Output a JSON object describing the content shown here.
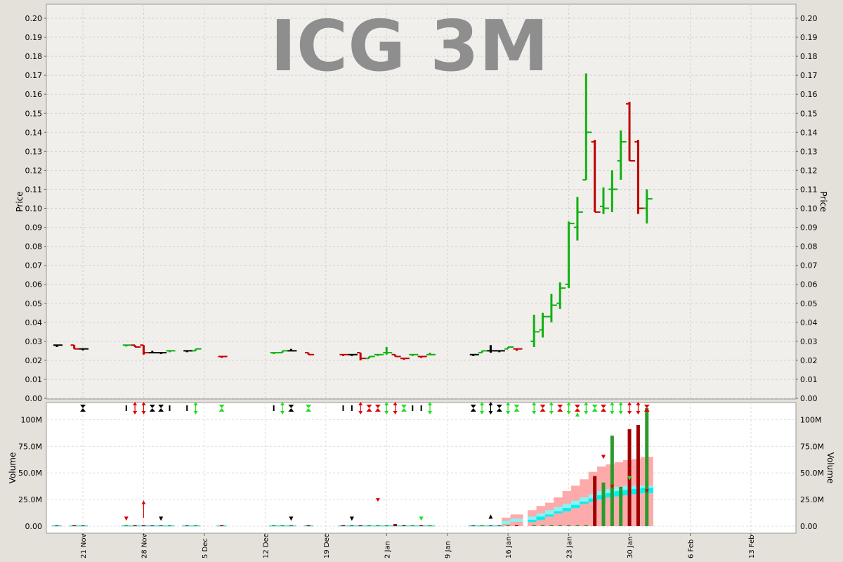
{
  "chart_data": [
    {
      "type": "ohlc",
      "title": "ICG 3M",
      "ylabel": "Price",
      "ylim": [
        0,
        0.205
      ],
      "yticks": [
        "0.00",
        "0.01",
        "0.02",
        "0.03",
        "0.04",
        "0.05",
        "0.06",
        "0.07",
        "0.08",
        "0.09",
        "0.10",
        "0.11",
        "0.12",
        "0.13",
        "0.14",
        "0.15",
        "0.16",
        "0.17",
        "0.18",
        "0.19",
        "0.20"
      ],
      "grid": true,
      "colors": {
        "up": "#10b010",
        "down": "#c00000",
        "flat": "#000000"
      },
      "bars": [
        {
          "date": "2012-11-18",
          "open": 0.028,
          "high": 0.028,
          "low": 0.027,
          "close": 0.028,
          "dir": "flat"
        },
        {
          "date": "2012-11-20",
          "open": 0.028,
          "high": 0.028,
          "low": 0.026,
          "close": 0.026,
          "dir": "down"
        },
        {
          "date": "2012-11-21",
          "open": 0.026,
          "high": 0.026,
          "low": 0.026,
          "close": 0.026,
          "dir": "flat"
        },
        {
          "date": "2012-11-26",
          "open": 0.028,
          "high": 0.028,
          "low": 0.028,
          "close": 0.028,
          "dir": "up"
        },
        {
          "date": "2012-11-27",
          "open": 0.028,
          "high": 0.028,
          "low": 0.027,
          "close": 0.027,
          "dir": "down"
        },
        {
          "date": "2012-11-28",
          "open": 0.028,
          "high": 0.028,
          "low": 0.023,
          "close": 0.024,
          "dir": "down"
        },
        {
          "date": "2012-11-29",
          "open": 0.024,
          "high": 0.025,
          "low": 0.024,
          "close": 0.024,
          "dir": "flat"
        },
        {
          "date": "2012-11-30",
          "open": 0.024,
          "high": 0.024,
          "low": 0.024,
          "close": 0.024,
          "dir": "flat"
        },
        {
          "date": "2012-12-01",
          "open": 0.025,
          "high": 0.025,
          "low": 0.025,
          "close": 0.025,
          "dir": "up"
        },
        {
          "date": "2012-12-03",
          "open": 0.025,
          "high": 0.025,
          "low": 0.025,
          "close": 0.025,
          "dir": "flat"
        },
        {
          "date": "2012-12-04",
          "open": 0.025,
          "high": 0.026,
          "low": 0.025,
          "close": 0.026,
          "dir": "up"
        },
        {
          "date": "2012-12-07",
          "open": 0.022,
          "high": 0.022,
          "low": 0.022,
          "close": 0.022,
          "dir": "down"
        },
        {
          "date": "2012-12-13",
          "open": 0.024,
          "high": 0.024,
          "low": 0.024,
          "close": 0.024,
          "dir": "up"
        },
        {
          "date": "2012-12-14",
          "open": 0.024,
          "high": 0.025,
          "low": 0.024,
          "close": 0.025,
          "dir": "up"
        },
        {
          "date": "2012-12-15",
          "open": 0.025,
          "high": 0.026,
          "low": 0.025,
          "close": 0.025,
          "dir": "flat"
        },
        {
          "date": "2012-12-17",
          "open": 0.024,
          "high": 0.024,
          "low": 0.023,
          "close": 0.023,
          "dir": "down"
        },
        {
          "date": "2012-12-21",
          "open": 0.023,
          "high": 0.023,
          "low": 0.023,
          "close": 0.023,
          "dir": "down"
        },
        {
          "date": "2012-12-22",
          "open": 0.023,
          "high": 0.023,
          "low": 0.023,
          "close": 0.023,
          "dir": "flat"
        },
        {
          "date": "2012-12-23",
          "open": 0.024,
          "high": 0.024,
          "low": 0.02,
          "close": 0.021,
          "dir": "down"
        },
        {
          "date": "2012-12-24",
          "open": 0.021,
          "high": 0.022,
          "low": 0.021,
          "close": 0.022,
          "dir": "up"
        },
        {
          "date": "2012-12-25",
          "open": 0.023,
          "high": 0.023,
          "low": 0.023,
          "close": 0.023,
          "dir": "up"
        },
        {
          "date": "2012-12-26",
          "open": 0.024,
          "high": 0.027,
          "low": 0.023,
          "close": 0.024,
          "dir": "up"
        },
        {
          "date": "2012-12-27",
          "open": 0.023,
          "high": 0.023,
          "low": 0.022,
          "close": 0.022,
          "dir": "down"
        },
        {
          "date": "2012-12-28",
          "open": 0.021,
          "high": 0.021,
          "low": 0.021,
          "close": 0.021,
          "dir": "down"
        },
        {
          "date": "2012-12-29",
          "open": 0.023,
          "high": 0.023,
          "low": 0.023,
          "close": 0.023,
          "dir": "up"
        },
        {
          "date": "2012-12-30",
          "open": 0.022,
          "high": 0.022,
          "low": 0.022,
          "close": 0.022,
          "dir": "down"
        },
        {
          "date": "2012-12-31",
          "open": 0.023,
          "high": 0.024,
          "low": 0.023,
          "close": 0.023,
          "dir": "up"
        },
        {
          "date": "2013-01-05",
          "open": 0.023,
          "high": 0.023,
          "low": 0.023,
          "close": 0.023,
          "dir": "flat"
        },
        {
          "date": "2013-01-06",
          "open": 0.024,
          "high": 0.025,
          "low": 0.024,
          "close": 0.025,
          "dir": "up"
        },
        {
          "date": "2013-01-07",
          "open": 0.025,
          "high": 0.028,
          "low": 0.024,
          "close": 0.025,
          "dir": "flat"
        },
        {
          "date": "2013-01-08",
          "open": 0.025,
          "high": 0.025,
          "low": 0.025,
          "close": 0.025,
          "dir": "flat"
        },
        {
          "date": "2013-01-09",
          "open": 0.026,
          "high": 0.027,
          "low": 0.026,
          "close": 0.027,
          "dir": "up"
        },
        {
          "date": "2013-01-10",
          "open": 0.026,
          "high": 0.026,
          "low": 0.025,
          "close": 0.026,
          "dir": "down"
        },
        {
          "date": "2013-01-12",
          "open": 0.03,
          "high": 0.044,
          "low": 0.027,
          "close": 0.035,
          "dir": "up"
        },
        {
          "date": "2013-01-13",
          "open": 0.036,
          "high": 0.045,
          "low": 0.032,
          "close": 0.043,
          "dir": "up"
        },
        {
          "date": "2013-01-14",
          "open": 0.043,
          "high": 0.055,
          "low": 0.04,
          "close": 0.049,
          "dir": "up"
        },
        {
          "date": "2013-01-15",
          "open": 0.05,
          "high": 0.061,
          "low": 0.047,
          "close": 0.058,
          "dir": "up"
        },
        {
          "date": "2013-01-16",
          "open": 0.06,
          "high": 0.093,
          "low": 0.058,
          "close": 0.092,
          "dir": "up"
        },
        {
          "date": "2013-01-17",
          "open": 0.09,
          "high": 0.106,
          "low": 0.083,
          "close": 0.098,
          "dir": "up"
        },
        {
          "date": "2013-01-18",
          "open": 0.115,
          "high": 0.171,
          "low": 0.115,
          "close": 0.14,
          "dir": "up"
        },
        {
          "date": "2013-01-19",
          "open": 0.135,
          "high": 0.136,
          "low": 0.098,
          "close": 0.098,
          "dir": "down"
        },
        {
          "date": "2013-01-20",
          "open": 0.101,
          "high": 0.111,
          "low": 0.097,
          "close": 0.1,
          "dir": "up"
        },
        {
          "date": "2013-01-21",
          "open": 0.11,
          "high": 0.12,
          "low": 0.098,
          "close": 0.11,
          "dir": "up"
        },
        {
          "date": "2013-01-22",
          "open": 0.125,
          "high": 0.141,
          "low": 0.115,
          "close": 0.135,
          "dir": "up"
        },
        {
          "date": "2013-01-23",
          "open": 0.155,
          "high": 0.156,
          "low": 0.125,
          "close": 0.125,
          "dir": "down"
        },
        {
          "date": "2013-01-24",
          "open": 0.135,
          "high": 0.136,
          "low": 0.097,
          "close": 0.1,
          "dir": "down"
        },
        {
          "date": "2013-01-25",
          "open": 0.1,
          "high": 0.11,
          "low": 0.092,
          "close": 0.105,
          "dir": "up"
        }
      ]
    },
    {
      "type": "bar",
      "ylabel": "Volume",
      "ylim": [
        0,
        117
      ],
      "yticks": [
        "0.00",
        "25.0M",
        "50.0M",
        "75.0M",
        "100M"
      ],
      "ytick_values": [
        0,
        25,
        50,
        75,
        100
      ],
      "grid": true,
      "xticks": [
        "21 Nov",
        "28 Nov",
        "5 Dec",
        "12 Dec",
        "19 Dec",
        "2 Jan",
        "9 Jan",
        "16 Jan",
        "23 Jan",
        "30 Jan",
        "6 Feb",
        "13 Feb"
      ],
      "volumes_M": [
        0.3,
        0.8,
        0.3,
        0.3,
        0.3,
        0.8,
        0.8,
        0.3,
        0.3,
        0.3,
        0.3,
        0.3,
        0.3,
        0.3,
        0.5,
        0.8,
        0.3,
        0.3,
        0.3,
        1.0,
        0.3,
        0.3,
        2.0,
        0.3,
        0.3,
        0.3,
        0.3,
        0.3,
        0.3,
        0.3,
        0.3,
        0.3,
        0.3,
        0.8,
        0.3,
        1.0,
        0.3,
        0.3,
        0.3,
        0.3,
        47,
        41,
        85,
        37,
        91,
        95,
        111,
        70,
        57,
        29,
        39,
        37,
        36,
        25
      ],
      "signals": [
        {
          "d": "2012-11-21",
          "s": "hourglass",
          "c": "black"
        },
        {
          "d": "2012-11-26",
          "s": "bar",
          "c": "black"
        },
        {
          "d": "2012-11-27",
          "s": "updown",
          "c": "red"
        },
        {
          "d": "2012-11-28",
          "s": "updown",
          "c": "red"
        },
        {
          "d": "2012-11-29",
          "s": "hourglass",
          "c": "black"
        },
        {
          "d": "2012-11-30",
          "s": "hourglass",
          "c": "black"
        },
        {
          "d": "2012-12-01",
          "s": "bar",
          "c": "black"
        },
        {
          "d": "2012-12-03",
          "s": "bar",
          "c": "black"
        },
        {
          "d": "2012-12-04",
          "s": "updown",
          "c": "lime"
        },
        {
          "d": "2012-12-07",
          "s": "hourglass",
          "c": "lime"
        },
        {
          "d": "2012-12-13",
          "s": "bar",
          "c": "black"
        },
        {
          "d": "2012-12-14",
          "s": "updown",
          "c": "lime"
        },
        {
          "d": "2012-12-15",
          "s": "hourglass",
          "c": "black"
        },
        {
          "d": "2012-12-17",
          "s": "hourglass",
          "c": "lime"
        },
        {
          "d": "2012-12-21",
          "s": "bar",
          "c": "black"
        },
        {
          "d": "2012-12-22",
          "s": "bar",
          "c": "black"
        },
        {
          "d": "2012-12-23",
          "s": "updown",
          "c": "red"
        },
        {
          "d": "2012-12-24",
          "s": "hourglass",
          "c": "red"
        },
        {
          "d": "2012-12-25",
          "s": "hourglass",
          "c": "red"
        },
        {
          "d": "2012-12-26",
          "s": "updown",
          "c": "lime"
        },
        {
          "d": "2012-12-27",
          "s": "updown",
          "c": "red"
        },
        {
          "d": "2012-12-28",
          "s": "hourglass",
          "c": "lime"
        },
        {
          "d": "2012-12-29",
          "s": "bar",
          "c": "black"
        },
        {
          "d": "2012-12-30",
          "s": "bar",
          "c": "black"
        },
        {
          "d": "2012-12-31",
          "s": "updown",
          "c": "lime"
        },
        {
          "d": "2013-01-05",
          "s": "hourglass",
          "c": "black"
        },
        {
          "d": "2013-01-06",
          "s": "updown",
          "c": "lime"
        },
        {
          "d": "2013-01-07",
          "s": "updown",
          "c": "black"
        },
        {
          "d": "2013-01-08",
          "s": "hourglass",
          "c": "black"
        },
        {
          "d": "2013-01-09",
          "s": "updown",
          "c": "lime"
        },
        {
          "d": "2013-01-10",
          "s": "hourglass",
          "c": "lime"
        },
        {
          "d": "2013-01-12",
          "s": "updown",
          "c": "lime"
        },
        {
          "d": "2013-01-13",
          "s": "hourglass",
          "c": "red"
        },
        {
          "d": "2013-01-14",
          "s": "updown",
          "c": "lime"
        },
        {
          "d": "2013-01-15",
          "s": "hourglass",
          "c": "red"
        },
        {
          "d": "2013-01-16",
          "s": "updown",
          "c": "lime"
        },
        {
          "d": "2013-01-17",
          "s": "hourglass",
          "c": "red"
        },
        {
          "d": "2013-01-18",
          "s": "updown",
          "c": "lime"
        },
        {
          "d": "2013-01-19",
          "s": "hourglass",
          "c": "lime"
        },
        {
          "d": "2013-01-20",
          "s": "hourglass",
          "c": "red"
        },
        {
          "d": "2013-01-21",
          "s": "updown",
          "c": "lime"
        },
        {
          "d": "2013-01-22",
          "s": "updown",
          "c": "lime"
        },
        {
          "d": "2013-01-23",
          "s": "updown",
          "c": "red"
        },
        {
          "d": "2013-01-24",
          "s": "updown",
          "c": "red"
        },
        {
          "d": "2013-01-25",
          "s": "hourglass",
          "c": "red"
        }
      ],
      "small_markers": [
        {
          "d": "2012-11-26",
          "s": "down",
          "c": "red",
          "v": 7
        },
        {
          "d": "2012-11-28",
          "s": "uparrow",
          "c": "red",
          "v": 24
        },
        {
          "d": "2012-11-30",
          "s": "down",
          "c": "black",
          "v": 7
        },
        {
          "d": "2012-12-15",
          "s": "down",
          "c": "black",
          "v": 7
        },
        {
          "d": "2012-12-22",
          "s": "down",
          "c": "black",
          "v": 7
        },
        {
          "d": "2012-12-25",
          "s": "downarrow",
          "c": "red",
          "v": 23
        },
        {
          "d": "2012-12-30",
          "s": "down",
          "c": "lime",
          "v": 7
        },
        {
          "d": "2013-01-07",
          "s": "up",
          "c": "black",
          "v": 9
        },
        {
          "d": "2013-01-17",
          "s": "up",
          "c": "lime",
          "v": 105
        },
        {
          "d": "2013-01-20",
          "s": "down",
          "c": "red",
          "v": 65
        },
        {
          "d": "2013-01-21",
          "s": "down",
          "c": "red",
          "v": 37
        },
        {
          "d": "2013-01-23",
          "s": "down",
          "c": "lime",
          "v": 45
        },
        {
          "d": "2013-01-25",
          "s": "down",
          "c": "red",
          "v": 33
        }
      ],
      "bands": {
        "pink": [
          2,
          4,
          4,
          6,
          9,
          12,
          14,
          17,
          21,
          23,
          25,
          27,
          28,
          29,
          30,
          31
        ],
        "cyan": [
          2,
          4,
          6,
          9,
          11,
          14,
          17,
          20,
          23,
          26,
          29,
          31,
          33,
          34,
          35,
          36
        ],
        "cyan_light": [
          5,
          7,
          9,
          12,
          15,
          18,
          21,
          24,
          27,
          30,
          33,
          35,
          37,
          38,
          38,
          38
        ],
        "pink_top": [
          8,
          11,
          15,
          19,
          22,
          27,
          33,
          38,
          44,
          51,
          56,
          58,
          60,
          62,
          63,
          65
        ]
      }
    }
  ]
}
